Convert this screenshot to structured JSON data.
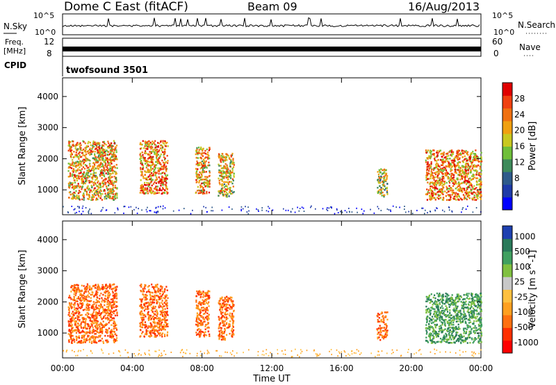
{
  "header": {
    "station": "Dome C East (fitACF)",
    "beam": "Beam 09",
    "date": "16/Aug/2013",
    "cpid_label": "CPID",
    "cpid_value": "twofsound 3501"
  },
  "noise_panel": {
    "left_label": "N.Sky",
    "left_ticks": [
      "10^5",
      "10^0"
    ],
    "right_label": "N.Search",
    "right_ticks": [
      "10^5",
      "10^0"
    ]
  },
  "freq_panel": {
    "left_label_1": "Freq.",
    "left_label_2": "[MHz]",
    "left_ticks": [
      "12",
      "8"
    ],
    "right_label": "Nave",
    "right_ticks": [
      "60",
      "0"
    ]
  },
  "colors": {
    "power_scale": [
      "#0000ff",
      "#1e3aa8",
      "#2e5a8a",
      "#3d8a5a",
      "#6fbf3a",
      "#c8c820",
      "#f0a010",
      "#f07010",
      "#f04010",
      "#e00000"
    ],
    "velocity_scale": [
      "#ff0000",
      "#ff3000",
      "#ff7010",
      "#ffa020",
      "#ffc040",
      "#c8c8c8",
      "#80c040",
      "#40a060",
      "#2a7a5a",
      "#1e40b0"
    ]
  },
  "chart_data": [
    {
      "type": "heatmap",
      "name": "power",
      "xlabel": "",
      "ylabel": "Slant Range [km]",
      "xlim": [
        "00:00",
        "24:00"
      ],
      "ylim": [
        200,
        4600
      ],
      "yticks": [
        1000,
        2000,
        3000,
        4000
      ],
      "grid": false,
      "colorbar": {
        "label": "Power [dB]",
        "ticks": [
          4,
          8,
          12,
          16,
          20,
          24,
          28
        ]
      },
      "blobs": [
        {
          "t0": 0.3,
          "t1": 3.1,
          "r0": 700,
          "r1": 2600,
          "v": 18
        },
        {
          "t0": 4.4,
          "t1": 6.0,
          "r0": 900,
          "r1": 2600,
          "v": 20
        },
        {
          "t0": 7.6,
          "t1": 8.4,
          "r0": 900,
          "r1": 2400,
          "v": 18
        },
        {
          "t0": 8.9,
          "t1": 9.8,
          "r0": 800,
          "r1": 2200,
          "v": 16
        },
        {
          "t0": 18.0,
          "t1": 18.6,
          "r0": 800,
          "r1": 1700,
          "v": 14
        },
        {
          "t0": 20.8,
          "t1": 24.0,
          "r0": 700,
          "r1": 2300,
          "v": 20
        }
      ]
    },
    {
      "type": "heatmap",
      "name": "velocity",
      "xlabel": "Time UT",
      "ylabel": "Slant Range [km]",
      "xlim": [
        "00:00",
        "24:00"
      ],
      "ylim": [
        200,
        4600
      ],
      "yticks": [
        1000,
        2000,
        3000,
        4000
      ],
      "xticks": [
        "00:00",
        "04:00",
        "08:00",
        "12:00",
        "16:00",
        "20:00",
        "00:00"
      ],
      "grid": false,
      "colorbar": {
        "label": "Velocity [m s^-1]",
        "ticks": [
          "1000",
          "500",
          "100",
          "25",
          "-25",
          "-100",
          "-500",
          "-1000"
        ]
      },
      "blobs": [
        {
          "t0": 0.3,
          "t1": 3.1,
          "r0": 700,
          "r1": 2600,
          "v": -300
        },
        {
          "t0": 4.4,
          "t1": 6.0,
          "r0": 900,
          "r1": 2600,
          "v": -250
        },
        {
          "t0": 7.6,
          "t1": 8.4,
          "r0": 900,
          "r1": 2400,
          "v": -200
        },
        {
          "t0": 8.9,
          "t1": 9.8,
          "r0": 800,
          "r1": 2200,
          "v": -150
        },
        {
          "t0": 18.0,
          "t1": 18.6,
          "r0": 800,
          "r1": 1700,
          "v": -200
        },
        {
          "t0": 20.8,
          "t1": 24.0,
          "r0": 700,
          "r1": 2300,
          "v": 150
        }
      ]
    }
  ]
}
